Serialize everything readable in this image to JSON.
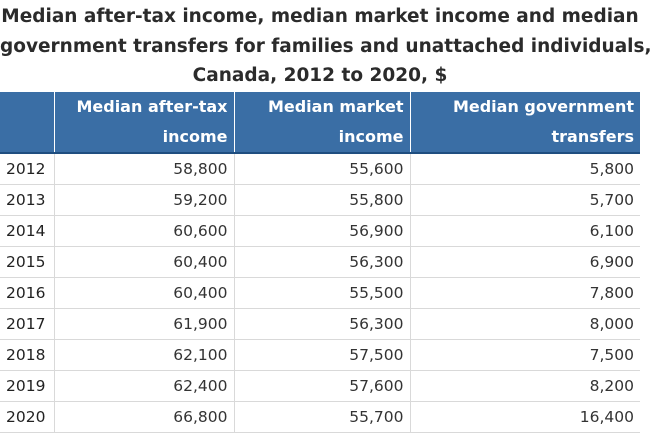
{
  "title_lines": [
    "Median after-tax income, median market income and median",
    "government transfers for families and unattached individuals,",
    "Canada, 2012 to 2020, $"
  ],
  "header": {
    "corner": "",
    "columns": [
      [
        "Median after-tax",
        "income"
      ],
      [
        "Median market",
        "income"
      ],
      [
        "Median government",
        "transfers"
      ]
    ]
  },
  "chart_data": {
    "type": "table",
    "title": "Median after-tax income, median market income and median government transfers for families and unattached individuals, Canada, 2012 to 2020, $",
    "columns": [
      "Median after-tax income",
      "Median market income",
      "Median government transfers"
    ],
    "rows": [
      {
        "year": "2012",
        "values": [
          "58,800",
          "55,600",
          "5,800"
        ]
      },
      {
        "year": "2013",
        "values": [
          "59,200",
          "55,800",
          "5,700"
        ]
      },
      {
        "year": "2014",
        "values": [
          "60,600",
          "56,900",
          "6,100"
        ]
      },
      {
        "year": "2015",
        "values": [
          "60,400",
          "56,300",
          "6,900"
        ]
      },
      {
        "year": "2016",
        "values": [
          "60,400",
          "55,500",
          "7,800"
        ]
      },
      {
        "year": "2017",
        "values": [
          "61,900",
          "56,300",
          "8,000"
        ]
      },
      {
        "year": "2018",
        "values": [
          "62,100",
          "57,500",
          "7,500"
        ]
      },
      {
        "year": "2019",
        "values": [
          "62,400",
          "57,600",
          "8,200"
        ]
      },
      {
        "year": "2020",
        "values": [
          "66,800",
          "55,700",
          "16,400"
        ]
      }
    ]
  },
  "colors": {
    "header_bg": "#3a6ea5",
    "header_text": "#ffffff",
    "row_border": "#d9d9d9"
  }
}
